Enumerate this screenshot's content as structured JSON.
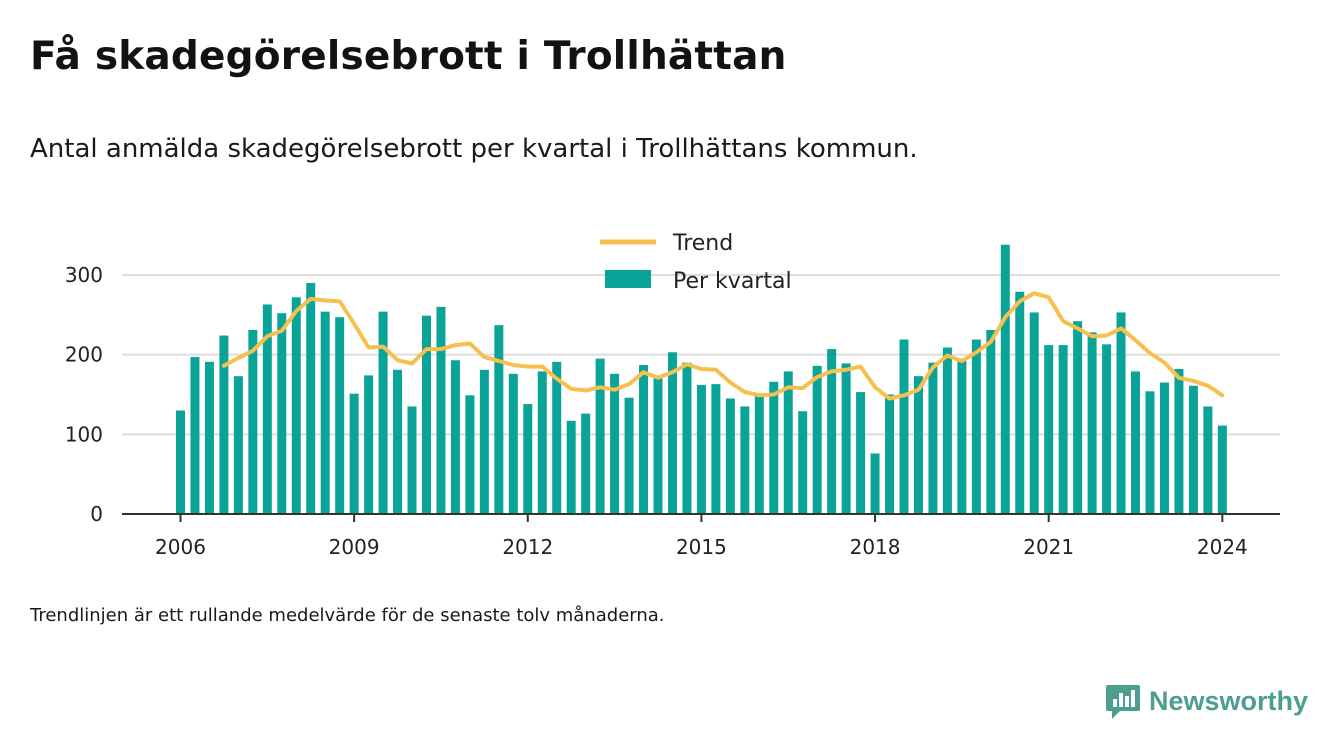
{
  "title": "Få skadegörelsebrott i Trollhättan",
  "subtitle": "Antal anmälda skadegörelsebrott per kvartal i Trollhättans kommun.",
  "footnote": "Trendlinjen är ett rullande medelvärde för de senaste tolv månaderna.",
  "brand": {
    "name": "Newsworthy",
    "icon": "newsworthy-logo-icon"
  },
  "colors": {
    "bar": "#0aa398",
    "trend": "#f6c04e",
    "grid": "#dddddd",
    "axis": "#333333",
    "brand": "#4d9e8f"
  },
  "chart_data": {
    "type": "bar",
    "x_start": "2006 Q1",
    "periods": [
      "2006 Q1",
      "2006 Q2",
      "2006 Q3",
      "2006 Q4",
      "2007 Q1",
      "2007 Q2",
      "2007 Q3",
      "2007 Q4",
      "2008 Q1",
      "2008 Q2",
      "2008 Q3",
      "2008 Q4",
      "2009 Q1",
      "2009 Q2",
      "2009 Q3",
      "2009 Q4",
      "2010 Q1",
      "2010 Q2",
      "2010 Q3",
      "2010 Q4",
      "2011 Q1",
      "2011 Q2",
      "2011 Q3",
      "2011 Q4",
      "2012 Q1",
      "2012 Q2",
      "2012 Q3",
      "2012 Q4",
      "2013 Q1",
      "2013 Q2",
      "2013 Q3",
      "2013 Q4",
      "2014 Q1",
      "2014 Q2",
      "2014 Q3",
      "2014 Q4",
      "2015 Q1",
      "2015 Q2",
      "2015 Q3",
      "2015 Q4",
      "2016 Q1",
      "2016 Q2",
      "2016 Q3",
      "2016 Q4",
      "2017 Q1",
      "2017 Q2",
      "2017 Q3",
      "2017 Q4",
      "2018 Q1",
      "2018 Q2",
      "2018 Q3",
      "2018 Q4",
      "2019 Q1",
      "2019 Q2",
      "2019 Q3",
      "2019 Q4",
      "2020 Q1",
      "2020 Q2",
      "2020 Q3",
      "2020 Q4",
      "2021 Q1",
      "2021 Q2",
      "2021 Q3",
      "2021 Q4",
      "2022 Q1",
      "2022 Q2",
      "2022 Q3",
      "2022 Q4",
      "2023 Q1",
      "2023 Q2",
      "2023 Q3",
      "2023 Q4",
      "2024 Q1"
    ],
    "series": [
      {
        "name": "Per kvartal",
        "type": "bar",
        "values": [
          130,
          197,
          191,
          224,
          173,
          231,
          263,
          252,
          272,
          290,
          254,
          247,
          151,
          174,
          254,
          181,
          135,
          249,
          260,
          193,
          149,
          181,
          237,
          176,
          138,
          179,
          191,
          117,
          126,
          195,
          176,
          146,
          187,
          172,
          203,
          190,
          162,
          163,
          145,
          135,
          151,
          166,
          179,
          129,
          186,
          207,
          189,
          153,
          76,
          150,
          219,
          173,
          190,
          209,
          193,
          219,
          231,
          338,
          279,
          253,
          212,
          212,
          242,
          228,
          213,
          253,
          179,
          154,
          165,
          182,
          161,
          135,
          111
        ]
      },
      {
        "name": "Trend",
        "type": "line",
        "values": [
          null,
          null,
          null,
          186,
          196,
          205,
          223,
          230,
          255,
          270,
          268,
          267,
          239,
          209,
          210,
          193,
          189,
          207,
          207,
          212,
          214,
          197,
          192,
          187,
          185,
          185,
          170,
          157,
          155,
          159,
          156,
          163,
          178,
          171,
          178,
          188,
          182,
          181,
          165,
          153,
          149,
          150,
          159,
          158,
          172,
          179,
          181,
          185,
          159,
          145,
          149,
          156,
          184,
          199,
          192,
          203,
          216,
          247,
          267,
          277,
          272,
          242,
          233,
          223,
          224,
          233,
          218,
          202,
          190,
          171,
          167,
          161,
          149
        ]
      }
    ],
    "x_ticks": [
      "2006",
      "2009",
      "2012",
      "2015",
      "2018",
      "2021",
      "2024"
    ],
    "y_ticks": [
      "0",
      "100",
      "200",
      "300"
    ],
    "ylim": [
      0,
      340
    ],
    "grid": true,
    "legend": {
      "position": "top-center",
      "entries": [
        "Trend",
        "Per kvartal"
      ]
    }
  }
}
